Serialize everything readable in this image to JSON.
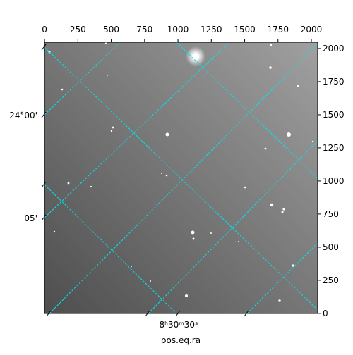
{
  "chart_data": {
    "type": "image",
    "xlabel": "pos.eq.ra",
    "xlim": [
      -0.5,
      2047.5
    ],
    "ylim": [
      -0.5,
      2047.5
    ],
    "xticks": [
      0,
      250,
      500,
      750,
      1000,
      1250,
      1500,
      1750,
      2000
    ],
    "yticks": [
      0,
      250,
      500,
      750,
      1000,
      1250,
      1500,
      1750,
      2000
    ],
    "world_yticks": [
      "24°00'",
      "05'"
    ],
    "world_xticks": [
      "8ʰ30ᵐ30ˢ"
    ]
  }
}
